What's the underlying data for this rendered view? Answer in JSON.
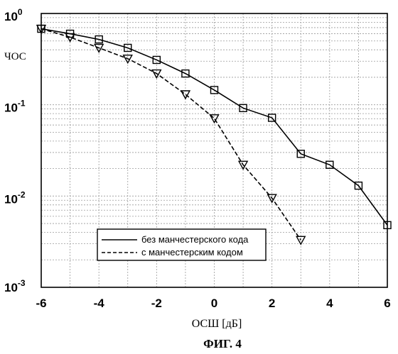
{
  "figure": {
    "caption": "ФИГ. 4"
  },
  "chart_data": {
    "type": "line",
    "xlabel": "ОСШ [дБ]",
    "ylabel": "ЧОС",
    "xlim": [
      -6,
      6
    ],
    "ylim": [
      0.001,
      1
    ],
    "yscale": "log",
    "grid": true,
    "legend_position": "bottom-center",
    "x_ticks": [
      "-6",
      "-4",
      "-2",
      "0",
      "2",
      "4",
      "6"
    ],
    "y_ticks": [
      {
        "base": "10",
        "exp": "0"
      },
      {
        "base": "10",
        "exp": "-1"
      },
      {
        "base": "10",
        "exp": "-2"
      },
      {
        "base": "10",
        "exp": "-3"
      }
    ],
    "series": [
      {
        "name": "без манчестерского кода",
        "linestyle": "solid",
        "marker": "square",
        "color": "#000000",
        "x": [
          -6,
          -5,
          -4,
          -3,
          -2,
          -1,
          0,
          1,
          2,
          3,
          4,
          5,
          6
        ],
        "y": [
          0.68,
          0.6,
          0.52,
          0.42,
          0.31,
          0.22,
          0.145,
          0.092,
          0.072,
          0.029,
          0.022,
          0.013,
          0.0048
        ]
      },
      {
        "name": "с манчестерским кодом",
        "linestyle": "dashed",
        "marker": "triangle-down",
        "color": "#000000",
        "x": [
          -6,
          -5,
          -4,
          -3,
          -2,
          -1,
          0,
          1,
          2,
          3
        ],
        "y": [
          0.68,
          0.55,
          0.42,
          0.32,
          0.22,
          0.13,
          0.071,
          0.022,
          0.0095,
          0.0033
        ]
      }
    ]
  }
}
